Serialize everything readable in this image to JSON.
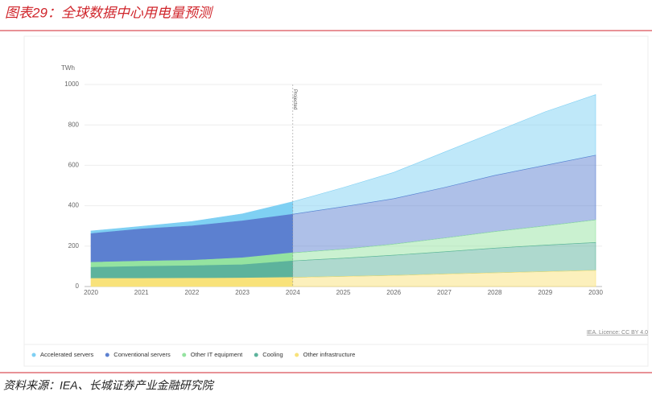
{
  "header": {
    "title": "图表29：全球数据中心用电量预测"
  },
  "chart_data": {
    "type": "stacked_area",
    "y_unit": "TWh",
    "categories": [
      "2020",
      "2021",
      "2022",
      "2023",
      "2024",
      "2025",
      "2026",
      "2027",
      "2028",
      "2029",
      "2030"
    ],
    "series": [
      {
        "name": "Accelerated servers",
        "color": "#7fd0f3",
        "values": [
          13,
          13,
          22,
          35,
          62,
          95,
          130,
          175,
          215,
          265,
          300
        ]
      },
      {
        "name": "Conventional servers",
        "color": "#5c80d0",
        "values": [
          142,
          159,
          170,
          183,
          191,
          210,
          225,
          250,
          278,
          300,
          320
        ]
      },
      {
        "name": "Other IT equipment",
        "color": "#94e3a0",
        "values": [
          25,
          26,
          27,
          34,
          40,
          45,
          55,
          68,
          82,
          95,
          112
        ]
      },
      {
        "name": "Cooling",
        "color": "#5db39c",
        "values": [
          55,
          60,
          62,
          66,
          82,
          90,
          100,
          110,
          122,
          131,
          138
        ]
      },
      {
        "name": "Other infrastructure",
        "color": "#f8e27a",
        "values": [
          40,
          40,
          41,
          42,
          45,
          50,
          55,
          62,
          68,
          74,
          80
        ]
      }
    ],
    "annotation": {
      "text": "Projected",
      "x": "2024"
    },
    "ylim": [
      0,
      1000
    ],
    "yticks": [
      0,
      200,
      400,
      600,
      800,
      1000
    ],
    "grid": true,
    "legend": "bottom",
    "credit": "IEA. Licence: CC BY 4.0"
  },
  "source": "资料来源：IEA、长城证券产业金融研究院"
}
